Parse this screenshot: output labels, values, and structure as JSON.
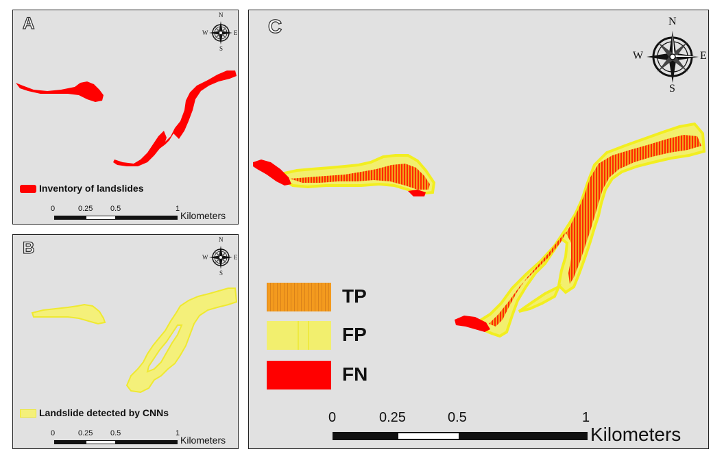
{
  "panels": {
    "a": {
      "label": "A",
      "legend": "Inventory of landslides"
    },
    "b": {
      "label": "B",
      "legend": "Landslide detected by CNNs"
    },
    "c": {
      "label": "C"
    }
  },
  "compass": {
    "n": "N",
    "s": "S",
    "e": "E",
    "w": "W"
  },
  "scalebar": {
    "ticks": [
      "0",
      "0.25",
      "0.5",
      "1"
    ],
    "unit": "Kilometers"
  },
  "legend_c": {
    "tp": "TP",
    "fp": "FP",
    "fn": "FN"
  },
  "colors": {
    "inventory": "#ff0000",
    "detected": "#f4f07a",
    "detected_edge": "#f2ee20",
    "tp": "#f39a1e",
    "fp": "#f2ef6e",
    "fn": "#ff0000",
    "background": "#e1e1e1"
  }
}
